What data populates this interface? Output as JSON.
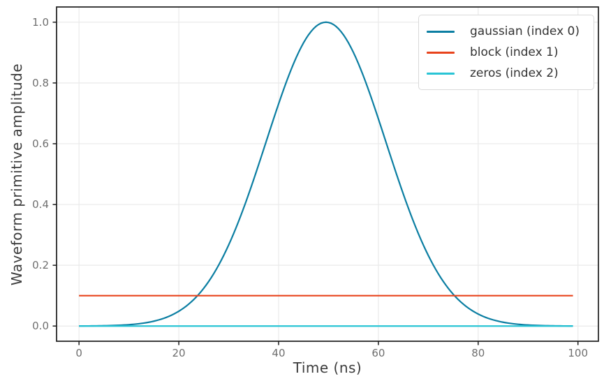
{
  "figure": {
    "background_color": "#ffffff"
  },
  "chart_data": {
    "type": "line",
    "title": "",
    "xlabel": "Time (ns)",
    "ylabel": "Waveform primitive amplitude",
    "xlim": [
      -4.5,
      104.1
    ],
    "ylim": [
      -0.05,
      1.05
    ],
    "x_ticks": [
      0,
      20,
      40,
      60,
      80,
      100
    ],
    "x_tick_labels": [
      "0",
      "20",
      "40",
      "60",
      "80",
      "100"
    ],
    "y_ticks": [
      0.0,
      0.2,
      0.4,
      0.6,
      0.8,
      1.0
    ],
    "y_tick_labels": [
      "0.0",
      "0.2",
      "0.4",
      "0.6",
      "0.8",
      "1.0"
    ],
    "grid": true,
    "legend_position": "upper right",
    "x_range": {
      "start": 0,
      "stop": 99,
      "points": 100,
      "unit": "ns"
    },
    "series": [
      {
        "name": "gaussian (index 0)",
        "color": "#0b7ea2",
        "shape": "gaussian",
        "center": 49.5,
        "std": 12,
        "amplitude": 1.0,
        "formula": "amplitude * exp(-(t-center)^2 / (2*std^2))"
      },
      {
        "name": "block (index 1)",
        "color": "#e8431c",
        "shape": "constant",
        "value": 0.1
      },
      {
        "name": "zeros (index 2)",
        "color": "#29c4d5",
        "shape": "constant",
        "value": 0.0
      }
    ],
    "style": {
      "grid_color": "#eaeaea",
      "spine_color": "#1c1c1c",
      "tick_label_color": "#6f6f6f",
      "axis_label_color": "#3c3c3c",
      "legend_border_color": "#d9d9d9",
      "legend_text_color": "#333333",
      "line_width": 2.2
    }
  }
}
